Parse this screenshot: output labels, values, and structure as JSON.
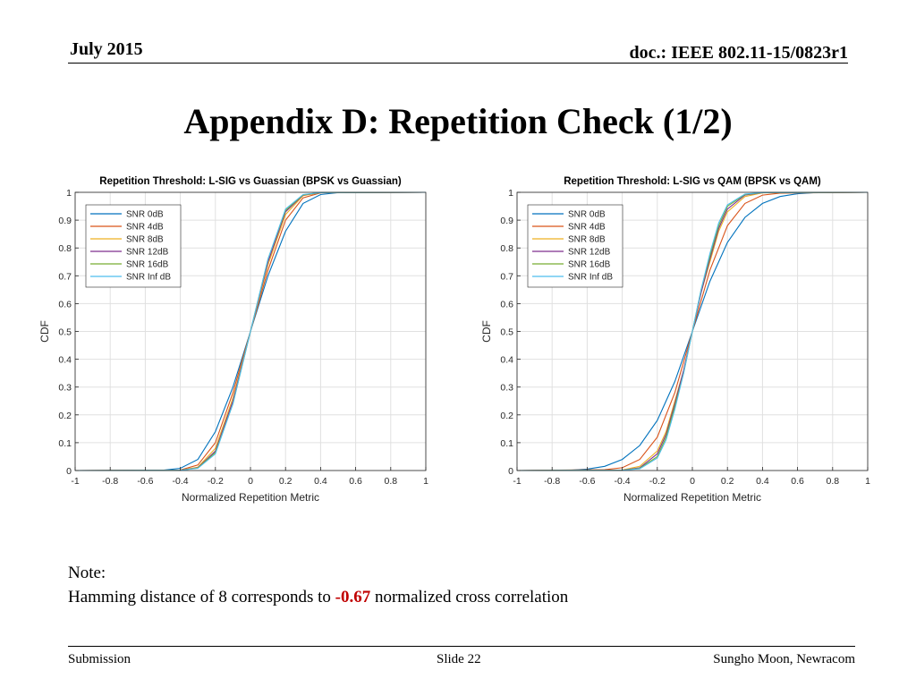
{
  "header": {
    "date": "July 2015",
    "doc": "doc.: IEEE 802.11-15/0823r1"
  },
  "slide_title": "Appendix D: Repetition Check (1/2)",
  "note": {
    "label": "Note:",
    "prefix": "Hamming distance of 8 corresponds to ",
    "highlight": "-0.67",
    "suffix": " normalized cross correlation",
    "highlight_color": "#c00000"
  },
  "footer": {
    "left": "Submission",
    "center": "Slide 22",
    "right": "Sungho Moon, Newracom"
  },
  "chart_data": [
    {
      "type": "line",
      "title": "Repetition Threshold: L-SIG vs Guassian (BPSK vs Guassian)",
      "xlabel": "Normalized Repetition Metric",
      "ylabel": "CDF",
      "xlim": [
        -1,
        1
      ],
      "ylim": [
        0,
        1
      ],
      "xticks": [
        -1,
        -0.8,
        -0.6,
        -0.4,
        -0.2,
        0,
        0.2,
        0.4,
        0.6,
        0.8,
        1
      ],
      "yticks": [
        0,
        0.1,
        0.2,
        0.3,
        0.4,
        0.5,
        0.6,
        0.7,
        0.8,
        0.9,
        1
      ],
      "xtick_labels": [
        "-1",
        "-0.8",
        "-0.6",
        "-0.4",
        "-0.2",
        "0",
        "0.2",
        "0.4",
        "0.6",
        "0.8",
        "1"
      ],
      "ytick_labels": [
        "0",
        "0.1",
        "0.2",
        "0.3",
        "0.4",
        "0.5",
        "0.6",
        "0.7",
        "0.8",
        "0.9",
        "1"
      ],
      "grid": true,
      "legend_position": "top-left",
      "series": [
        {
          "name": "SNR 0dB",
          "color": "#0072bd",
          "x": [
            -1,
            -0.5,
            -0.4,
            -0.3,
            -0.2,
            -0.1,
            0,
            0.1,
            0.2,
            0.3,
            0.4,
            0.5,
            1
          ],
          "y": [
            0,
            0.001,
            0.008,
            0.04,
            0.14,
            0.3,
            0.5,
            0.7,
            0.86,
            0.96,
            0.992,
            0.999,
            1
          ]
        },
        {
          "name": "SNR 4dB",
          "color": "#d95319",
          "x": [
            -1,
            -0.4,
            -0.3,
            -0.2,
            -0.1,
            0,
            0.1,
            0.2,
            0.3,
            0.4,
            1
          ],
          "y": [
            0,
            0.002,
            0.02,
            0.1,
            0.28,
            0.5,
            0.72,
            0.9,
            0.98,
            0.998,
            1
          ]
        },
        {
          "name": "SNR 8dB",
          "color": "#edb120",
          "x": [
            -1,
            -0.4,
            -0.3,
            -0.2,
            -0.1,
            0,
            0.1,
            0.2,
            0.3,
            0.4,
            1
          ],
          "y": [
            0,
            0.001,
            0.012,
            0.08,
            0.26,
            0.5,
            0.74,
            0.92,
            0.988,
            0.999,
            1
          ]
        },
        {
          "name": "SNR 12dB",
          "color": "#7e2f8e",
          "x": [
            -1,
            -0.4,
            -0.3,
            -0.2,
            -0.1,
            0,
            0.1,
            0.2,
            0.3,
            0.4,
            1
          ],
          "y": [
            0,
            0.001,
            0.01,
            0.07,
            0.25,
            0.5,
            0.75,
            0.93,
            0.99,
            0.999,
            1
          ]
        },
        {
          "name": "SNR 16dB",
          "color": "#77ac30",
          "x": [
            -1,
            -0.4,
            -0.3,
            -0.2,
            -0.1,
            0,
            0.1,
            0.2,
            0.3,
            0.4,
            1
          ],
          "y": [
            0,
            0.001,
            0.009,
            0.065,
            0.24,
            0.5,
            0.76,
            0.935,
            0.991,
            0.999,
            1
          ]
        },
        {
          "name": "SNR Inf dB",
          "color": "#4dbeee",
          "x": [
            -1,
            -0.4,
            -0.3,
            -0.2,
            -0.1,
            0,
            0.1,
            0.2,
            0.3,
            0.4,
            1
          ],
          "y": [
            0,
            0.001,
            0.008,
            0.06,
            0.24,
            0.5,
            0.76,
            0.94,
            0.992,
            0.999,
            1
          ]
        }
      ]
    },
    {
      "type": "line",
      "title": "Repetition Threshold: L-SIG vs QAM (BPSK vs QAM)",
      "xlabel": "Normalized Repetition Metric",
      "ylabel": "CDF",
      "xlim": [
        -1,
        1
      ],
      "ylim": [
        0,
        1
      ],
      "xticks": [
        -1,
        -0.8,
        -0.6,
        -0.4,
        -0.2,
        0,
        0.2,
        0.4,
        0.6,
        0.8,
        1
      ],
      "yticks": [
        0,
        0.1,
        0.2,
        0.3,
        0.4,
        0.5,
        0.6,
        0.7,
        0.8,
        0.9,
        1
      ],
      "xtick_labels": [
        "-1",
        "-0.8",
        "-0.6",
        "-0.4",
        "-0.2",
        "0",
        "0.2",
        "0.4",
        "0.6",
        "0.8",
        "1"
      ],
      "ytick_labels": [
        "0",
        "0.1",
        "0.2",
        "0.3",
        "0.4",
        "0.5",
        "0.6",
        "0.7",
        "0.8",
        "0.9",
        "1"
      ],
      "grid": true,
      "legend_position": "top-left",
      "series": [
        {
          "name": "SNR 0dB",
          "color": "#0072bd",
          "x": [
            -1,
            -0.7,
            -0.6,
            -0.5,
            -0.4,
            -0.3,
            -0.2,
            -0.1,
            0,
            0.1,
            0.2,
            0.3,
            0.4,
            0.5,
            0.6,
            0.7,
            1
          ],
          "y": [
            0,
            0.001,
            0.005,
            0.015,
            0.04,
            0.09,
            0.18,
            0.32,
            0.5,
            0.68,
            0.82,
            0.91,
            0.96,
            0.985,
            0.995,
            0.999,
            1
          ]
        },
        {
          "name": "SNR 4dB",
          "color": "#d95319",
          "x": [
            -1,
            -0.5,
            -0.4,
            -0.3,
            -0.2,
            -0.1,
            0,
            0.1,
            0.2,
            0.3,
            0.4,
            0.5,
            1
          ],
          "y": [
            0,
            0.003,
            0.01,
            0.04,
            0.12,
            0.28,
            0.5,
            0.72,
            0.88,
            0.96,
            0.99,
            0.997,
            1
          ]
        },
        {
          "name": "SNR 8dB",
          "color": "#edb120",
          "x": [
            -1,
            -0.4,
            -0.3,
            -0.2,
            -0.15,
            -0.1,
            -0.05,
            0,
            0.05,
            0.1,
            0.15,
            0.2,
            0.3,
            0.4,
            1
          ],
          "y": [
            0,
            0.002,
            0.015,
            0.07,
            0.14,
            0.25,
            0.36,
            0.5,
            0.64,
            0.75,
            0.86,
            0.93,
            0.985,
            0.998,
            1
          ]
        },
        {
          "name": "SNR 12dB",
          "color": "#7e2f8e",
          "x": [
            -1,
            -0.4,
            -0.3,
            -0.2,
            -0.15,
            -0.1,
            -0.05,
            0,
            0.05,
            0.1,
            0.15,
            0.2,
            0.3,
            0.4,
            1
          ],
          "y": [
            0,
            0.001,
            0.01,
            0.06,
            0.13,
            0.24,
            0.36,
            0.5,
            0.64,
            0.76,
            0.87,
            0.94,
            0.99,
            0.999,
            1
          ]
        },
        {
          "name": "SNR 16dB",
          "color": "#77ac30",
          "x": [
            -1,
            -0.4,
            -0.3,
            -0.2,
            -0.15,
            -0.1,
            -0.05,
            0,
            0.05,
            0.1,
            0.15,
            0.2,
            0.3,
            0.4,
            1
          ],
          "y": [
            0,
            0.001,
            0.008,
            0.05,
            0.12,
            0.23,
            0.35,
            0.5,
            0.65,
            0.77,
            0.88,
            0.95,
            0.992,
            0.999,
            1
          ]
        },
        {
          "name": "SNR Inf dB",
          "color": "#4dbeee",
          "x": [
            -1,
            -0.4,
            -0.3,
            -0.2,
            -0.15,
            -0.1,
            -0.05,
            0,
            0.05,
            0.1,
            0.15,
            0.2,
            0.3,
            0.4,
            1
          ],
          "y": [
            0,
            0.001,
            0.006,
            0.045,
            0.11,
            0.22,
            0.35,
            0.5,
            0.65,
            0.78,
            0.89,
            0.955,
            0.994,
            0.999,
            1
          ]
        }
      ]
    }
  ]
}
